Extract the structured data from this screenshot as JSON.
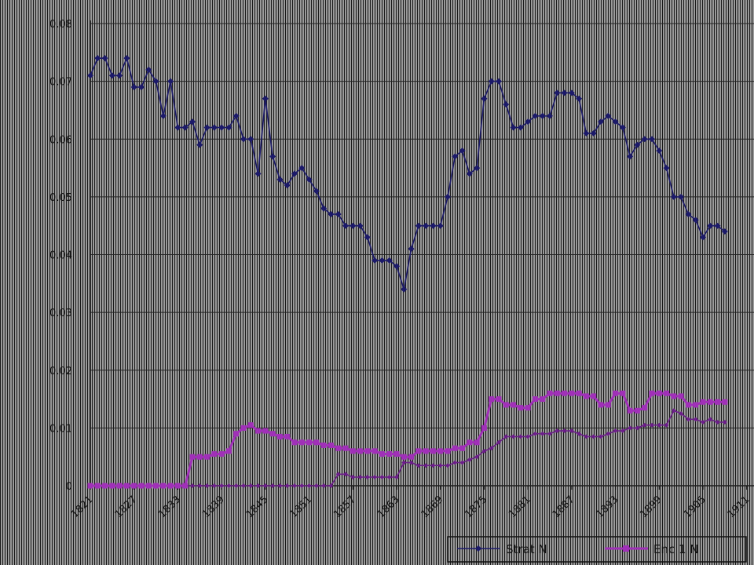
{
  "chart_data": {
    "type": "line",
    "title": "",
    "xlabel": "",
    "ylabel": "",
    "ylim": [
      0,
      0.08
    ],
    "yticks": [
      "0",
      "0.01",
      "0.02",
      "0.03",
      "0.04",
      "0.05",
      "0.06",
      "0.07",
      "0.08"
    ],
    "x_tick_labels": [
      "1821",
      "1827",
      "1833",
      "1839",
      "1845",
      "1851",
      "1857",
      "1863",
      "1869",
      "1875",
      "1881",
      "1887",
      "1893",
      "1899",
      "1905",
      "1911"
    ],
    "x_start": 1821,
    "x_end": 1912,
    "grid": true,
    "legend_position": "bottom",
    "series": [
      {
        "name": "Strat N",
        "color": "#1c1a6a",
        "marker": "diamond",
        "points": [
          [
            1821,
            0.071
          ],
          [
            1822,
            0.074
          ],
          [
            1823,
            0.074
          ],
          [
            1824,
            0.071
          ],
          [
            1825,
            0.071
          ],
          [
            1826,
            0.074
          ],
          [
            1827,
            0.069
          ],
          [
            1828,
            0.069
          ],
          [
            1829,
            0.072
          ],
          [
            1830,
            0.07
          ],
          [
            1831,
            0.064
          ],
          [
            1832,
            0.07
          ],
          [
            1833,
            0.062
          ],
          [
            1834,
            0.062
          ],
          [
            1835,
            0.063
          ],
          [
            1836,
            0.059
          ],
          [
            1837,
            0.062
          ],
          [
            1838,
            0.062
          ],
          [
            1839,
            0.062
          ],
          [
            1840,
            0.062
          ],
          [
            1841,
            0.064
          ],
          [
            1842,
            0.06
          ],
          [
            1843,
            0.06
          ],
          [
            1844,
            0.054
          ],
          [
            1845,
            0.067
          ],
          [
            1846,
            0.057
          ],
          [
            1847,
            0.053
          ],
          [
            1848,
            0.052
          ],
          [
            1849,
            0.054
          ],
          [
            1850,
            0.055
          ],
          [
            1851,
            0.053
          ],
          [
            1852,
            0.051
          ],
          [
            1853,
            0.048
          ],
          [
            1854,
            0.047
          ],
          [
            1855,
            0.047
          ],
          [
            1856,
            0.045
          ],
          [
            1857,
            0.045
          ],
          [
            1858,
            0.045
          ],
          [
            1859,
            0.043
          ],
          [
            1860,
            0.039
          ],
          [
            1861,
            0.039
          ],
          [
            1862,
            0.039
          ],
          [
            1863,
            0.038
          ],
          [
            1864,
            0.034
          ],
          [
            1865,
            0.041
          ],
          [
            1866,
            0.045
          ],
          [
            1867,
            0.045
          ],
          [
            1868,
            0.045
          ],
          [
            1869,
            0.045
          ],
          [
            1870,
            0.05
          ],
          [
            1871,
            0.057
          ],
          [
            1872,
            0.058
          ],
          [
            1873,
            0.054
          ],
          [
            1874,
            0.055
          ],
          [
            1875,
            0.067
          ],
          [
            1876,
            0.07
          ],
          [
            1877,
            0.07
          ],
          [
            1878,
            0.066
          ],
          [
            1879,
            0.062
          ],
          [
            1880,
            0.062
          ],
          [
            1881,
            0.063
          ],
          [
            1882,
            0.064
          ],
          [
            1883,
            0.064
          ],
          [
            1884,
            0.064
          ],
          [
            1885,
            0.068
          ],
          [
            1886,
            0.068
          ],
          [
            1887,
            0.068
          ],
          [
            1888,
            0.067
          ],
          [
            1889,
            0.061
          ],
          [
            1890,
            0.061
          ],
          [
            1891,
            0.063
          ],
          [
            1892,
            0.064
          ],
          [
            1893,
            0.063
          ],
          [
            1894,
            0.062
          ],
          [
            1895,
            0.057
          ],
          [
            1896,
            0.059
          ],
          [
            1897,
            0.06
          ],
          [
            1898,
            0.06
          ],
          [
            1899,
            0.058
          ],
          [
            1900,
            0.055
          ],
          [
            1901,
            0.05
          ],
          [
            1902,
            0.05
          ],
          [
            1903,
            0.047
          ],
          [
            1904,
            0.046
          ],
          [
            1905,
            0.043
          ],
          [
            1906,
            0.045
          ],
          [
            1907,
            0.045
          ],
          [
            1908,
            0.044
          ]
        ]
      },
      {
        "name": "Enc 1 N",
        "color": "#a030b8",
        "marker": "square",
        "points": [
          [
            1821,
            0
          ],
          [
            1822,
            0
          ],
          [
            1823,
            0
          ],
          [
            1824,
            0
          ],
          [
            1825,
            0
          ],
          [
            1826,
            0
          ],
          [
            1827,
            0
          ],
          [
            1828,
            0
          ],
          [
            1829,
            0
          ],
          [
            1830,
            0
          ],
          [
            1831,
            0
          ],
          [
            1832,
            0
          ],
          [
            1833,
            0
          ],
          [
            1834,
            0
          ],
          [
            1835,
            0.005
          ],
          [
            1836,
            0.005
          ],
          [
            1837,
            0.005
          ],
          [
            1838,
            0.0055
          ],
          [
            1839,
            0.0055
          ],
          [
            1840,
            0.006
          ],
          [
            1841,
            0.009
          ],
          [
            1842,
            0.01
          ],
          [
            1843,
            0.0105
          ],
          [
            1844,
            0.0095
          ],
          [
            1845,
            0.0095
          ],
          [
            1846,
            0.009
          ],
          [
            1847,
            0.0085
          ],
          [
            1848,
            0.0085
          ],
          [
            1849,
            0.0075
          ],
          [
            1850,
            0.0075
          ],
          [
            1851,
            0.0075
          ],
          [
            1852,
            0.0075
          ],
          [
            1853,
            0.007
          ],
          [
            1854,
            0.007
          ],
          [
            1855,
            0.0065
          ],
          [
            1856,
            0.0065
          ],
          [
            1857,
            0.006
          ],
          [
            1858,
            0.006
          ],
          [
            1859,
            0.006
          ],
          [
            1860,
            0.006
          ],
          [
            1861,
            0.0055
          ],
          [
            1862,
            0.0055
          ],
          [
            1863,
            0.0055
          ],
          [
            1864,
            0.005
          ],
          [
            1865,
            0.005
          ],
          [
            1866,
            0.006
          ],
          [
            1867,
            0.006
          ],
          [
            1868,
            0.006
          ],
          [
            1869,
            0.006
          ],
          [
            1870,
            0.006
          ],
          [
            1871,
            0.0065
          ],
          [
            1872,
            0.0065
          ],
          [
            1873,
            0.0075
          ],
          [
            1874,
            0.0075
          ],
          [
            1875,
            0.01
          ],
          [
            1876,
            0.015
          ],
          [
            1877,
            0.015
          ],
          [
            1878,
            0.014
          ],
          [
            1879,
            0.014
          ],
          [
            1880,
            0.0135
          ],
          [
            1881,
            0.0135
          ],
          [
            1882,
            0.015
          ],
          [
            1883,
            0.015
          ],
          [
            1884,
            0.016
          ],
          [
            1885,
            0.016
          ],
          [
            1886,
            0.016
          ],
          [
            1887,
            0.016
          ],
          [
            1888,
            0.016
          ],
          [
            1889,
            0.0155
          ],
          [
            1890,
            0.0155
          ],
          [
            1891,
            0.014
          ],
          [
            1892,
            0.014
          ],
          [
            1893,
            0.016
          ],
          [
            1894,
            0.016
          ],
          [
            1895,
            0.013
          ],
          [
            1896,
            0.013
          ],
          [
            1897,
            0.0135
          ],
          [
            1898,
            0.016
          ],
          [
            1899,
            0.016
          ],
          [
            1900,
            0.016
          ],
          [
            1901,
            0.0155
          ],
          [
            1902,
            0.0155
          ],
          [
            1903,
            0.014
          ],
          [
            1904,
            0.014
          ],
          [
            1905,
            0.0145
          ],
          [
            1906,
            0.0145
          ],
          [
            1907,
            0.0145
          ],
          [
            1908,
            0.0145
          ]
        ]
      },
      {
        "name": "",
        "color": "#6c1e8a",
        "marker": "diamond",
        "points": [
          [
            1821,
            0
          ],
          [
            1822,
            0
          ],
          [
            1823,
            0
          ],
          [
            1824,
            0
          ],
          [
            1825,
            0
          ],
          [
            1826,
            0
          ],
          [
            1827,
            0
          ],
          [
            1828,
            0
          ],
          [
            1829,
            0
          ],
          [
            1830,
            0
          ],
          [
            1831,
            0
          ],
          [
            1832,
            0
          ],
          [
            1833,
            0
          ],
          [
            1834,
            0
          ],
          [
            1835,
            0
          ],
          [
            1836,
            0
          ],
          [
            1837,
            0
          ],
          [
            1838,
            0
          ],
          [
            1839,
            0
          ],
          [
            1840,
            0
          ],
          [
            1841,
            0
          ],
          [
            1842,
            0
          ],
          [
            1843,
            0
          ],
          [
            1844,
            0
          ],
          [
            1845,
            0
          ],
          [
            1846,
            0
          ],
          [
            1847,
            0
          ],
          [
            1848,
            0
          ],
          [
            1849,
            0
          ],
          [
            1850,
            0
          ],
          [
            1851,
            0
          ],
          [
            1852,
            0
          ],
          [
            1853,
            0
          ],
          [
            1854,
            0
          ],
          [
            1855,
            0.002
          ],
          [
            1856,
            0.002
          ],
          [
            1857,
            0.0015
          ],
          [
            1858,
            0.0015
          ],
          [
            1859,
            0.0015
          ],
          [
            1860,
            0.0015
          ],
          [
            1861,
            0.0015
          ],
          [
            1862,
            0.0015
          ],
          [
            1863,
            0.0015
          ],
          [
            1864,
            0.004
          ],
          [
            1865,
            0.004
          ],
          [
            1866,
            0.0035
          ],
          [
            1867,
            0.0035
          ],
          [
            1868,
            0.0035
          ],
          [
            1869,
            0.0035
          ],
          [
            1870,
            0.0035
          ],
          [
            1871,
            0.004
          ],
          [
            1872,
            0.004
          ],
          [
            1873,
            0.0045
          ],
          [
            1874,
            0.005
          ],
          [
            1875,
            0.006
          ],
          [
            1876,
            0.0065
          ],
          [
            1877,
            0.0075
          ],
          [
            1878,
            0.0085
          ],
          [
            1879,
            0.0085
          ],
          [
            1880,
            0.0085
          ],
          [
            1881,
            0.0085
          ],
          [
            1882,
            0.009
          ],
          [
            1883,
            0.009
          ],
          [
            1884,
            0.009
          ],
          [
            1885,
            0.0095
          ],
          [
            1886,
            0.0095
          ],
          [
            1887,
            0.0095
          ],
          [
            1888,
            0.009
          ],
          [
            1889,
            0.0085
          ],
          [
            1890,
            0.0085
          ],
          [
            1891,
            0.0085
          ],
          [
            1892,
            0.009
          ],
          [
            1893,
            0.0095
          ],
          [
            1894,
            0.0095
          ],
          [
            1895,
            0.01
          ],
          [
            1896,
            0.01
          ],
          [
            1897,
            0.0105
          ],
          [
            1898,
            0.0105
          ],
          [
            1899,
            0.0105
          ],
          [
            1900,
            0.0105
          ],
          [
            1901,
            0.013
          ],
          [
            1902,
            0.0125
          ],
          [
            1903,
            0.0115
          ],
          [
            1904,
            0.0115
          ],
          [
            1905,
            0.011
          ],
          [
            1906,
            0.0115
          ],
          [
            1907,
            0.011
          ],
          [
            1908,
            0.011
          ]
        ]
      }
    ],
    "legend": [
      {
        "label": "Strat N",
        "series": 0
      },
      {
        "label": "Enc 1 N",
        "series": 1
      }
    ]
  }
}
